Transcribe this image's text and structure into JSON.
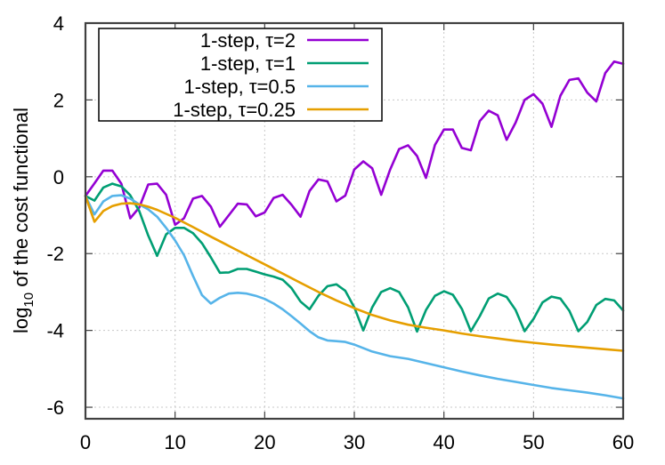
{
  "chart_data": {
    "type": "line",
    "title": "",
    "xlabel": "",
    "ylabel": "log10 of the cost functional",
    "ylabel_parts": {
      "pre": "log",
      "sub": "10",
      "post": " of the cost functional"
    },
    "xlim": [
      0,
      60
    ],
    "ylim": [
      -6.3,
      4
    ],
    "xticks": [
      0,
      10,
      20,
      30,
      40,
      50,
      60
    ],
    "yticks": [
      -6,
      -4,
      -2,
      0,
      2,
      4
    ],
    "xtick_labels": [
      "0",
      "10",
      "20",
      "30",
      "40",
      "50",
      "60"
    ],
    "ytick_labels": [
      "-6",
      "-4",
      "-2",
      "0",
      "2",
      "4"
    ],
    "grid": true,
    "legend_position": "upper left (inset box)",
    "series": [
      {
        "name": "1-step, τ=2",
        "color": "#9400d3",
        "x": [
          0,
          1,
          2,
          3,
          4,
          5,
          6,
          7,
          8,
          9,
          10,
          11,
          12,
          13,
          14,
          15,
          16,
          17,
          18,
          19,
          20,
          21,
          22,
          23,
          24,
          25,
          26,
          27,
          28,
          29,
          30,
          31,
          32,
          33,
          34,
          35,
          36,
          37,
          38,
          39,
          40,
          41,
          42,
          43,
          44,
          45,
          46,
          47,
          48,
          49,
          50,
          51,
          52,
          53,
          54,
          55,
          56,
          57,
          58,
          59,
          60
        ],
        "values": [
          -0.5,
          -0.17,
          0.16,
          0.16,
          -0.18,
          -1.08,
          -0.8,
          -0.2,
          -0.18,
          -0.47,
          -1.25,
          -1.08,
          -0.57,
          -0.5,
          -0.78,
          -1.3,
          -1.0,
          -0.7,
          -0.72,
          -1.03,
          -0.93,
          -0.55,
          -0.47,
          -0.73,
          -1.04,
          -0.37,
          -0.07,
          -0.12,
          -0.64,
          -0.49,
          0.19,
          0.4,
          0.22,
          -0.47,
          0.19,
          0.72,
          0.82,
          0.54,
          -0.03,
          0.83,
          1.23,
          1.23,
          0.75,
          0.69,
          1.45,
          1.72,
          1.6,
          0.96,
          1.41,
          2.0,
          2.15,
          1.9,
          1.3,
          2.11,
          2.52,
          2.56,
          2.19,
          1.96,
          2.7,
          3.0,
          2.94
        ]
      },
      {
        "name": "1-step, τ=1",
        "color": "#009e73",
        "x": [
          0,
          1,
          2,
          3,
          4,
          5,
          6,
          7,
          8,
          9,
          10,
          11,
          12,
          13,
          14,
          15,
          16,
          17,
          18,
          19,
          20,
          21,
          22,
          23,
          24,
          25,
          26,
          27,
          28,
          29,
          30,
          31,
          32,
          33,
          34,
          35,
          36,
          37,
          38,
          39,
          40,
          41,
          42,
          43,
          44,
          45,
          46,
          47,
          48,
          49,
          50,
          51,
          52,
          53,
          54,
          55,
          56,
          57,
          58,
          59,
          60
        ],
        "values": [
          -0.5,
          -0.62,
          -0.28,
          -0.18,
          -0.25,
          -0.48,
          -0.89,
          -1.53,
          -2.06,
          -1.5,
          -1.33,
          -1.33,
          -1.47,
          -1.73,
          -2.1,
          -2.5,
          -2.49,
          -2.4,
          -2.4,
          -2.47,
          -2.54,
          -2.6,
          -2.68,
          -2.9,
          -3.25,
          -3.45,
          -3.1,
          -2.85,
          -2.8,
          -2.97,
          -3.4,
          -4.0,
          -3.4,
          -3.0,
          -2.9,
          -3.0,
          -3.4,
          -4.03,
          -3.47,
          -3.1,
          -2.98,
          -3.07,
          -3.44,
          -4.02,
          -3.63,
          -3.17,
          -3.04,
          -3.13,
          -3.47,
          -4.02,
          -3.7,
          -3.27,
          -3.12,
          -3.17,
          -3.49,
          -4.02,
          -3.78,
          -3.34,
          -3.18,
          -3.22,
          -3.48
        ]
      },
      {
        "name": "1-step, τ=0.5",
        "color": "#56b4e9",
        "x": [
          0,
          1,
          2,
          3,
          4,
          5,
          6,
          7,
          8,
          9,
          10,
          11,
          12,
          13,
          14,
          15,
          16,
          17,
          18,
          19,
          20,
          21,
          22,
          23,
          24,
          25,
          26,
          27,
          28,
          29,
          30,
          32,
          34,
          36,
          38,
          40,
          42,
          44,
          46,
          48,
          50,
          52,
          54,
          56,
          58,
          60
        ],
        "values": [
          -0.5,
          -0.98,
          -0.64,
          -0.5,
          -0.48,
          -0.57,
          -0.72,
          -0.85,
          -1.04,
          -1.33,
          -1.66,
          -2.04,
          -2.58,
          -3.08,
          -3.3,
          -3.15,
          -3.04,
          -3.02,
          -3.04,
          -3.1,
          -3.18,
          -3.3,
          -3.45,
          -3.63,
          -3.82,
          -4.02,
          -4.18,
          -4.26,
          -4.28,
          -4.3,
          -4.37,
          -4.55,
          -4.67,
          -4.74,
          -4.85,
          -4.96,
          -5.07,
          -5.17,
          -5.26,
          -5.34,
          -5.42,
          -5.5,
          -5.56,
          -5.62,
          -5.69,
          -5.77
        ]
      },
      {
        "name": "1-step, τ=0.25",
        "color": "#e69f00",
        "x": [
          0,
          1,
          2,
          3,
          4,
          5,
          6,
          7,
          8,
          10,
          12,
          14,
          16,
          18,
          20,
          22,
          24,
          26,
          28,
          30,
          32,
          34,
          36,
          38,
          40,
          42,
          44,
          46,
          48,
          50,
          52,
          54,
          56,
          58,
          60
        ],
        "values": [
          -0.5,
          -1.17,
          -0.89,
          -0.76,
          -0.7,
          -0.69,
          -0.72,
          -0.78,
          -0.86,
          -1.07,
          -1.31,
          -1.56,
          -1.8,
          -2.04,
          -2.28,
          -2.52,
          -2.76,
          -3.0,
          -3.22,
          -3.42,
          -3.6,
          -3.74,
          -3.85,
          -3.93,
          -4.0,
          -4.08,
          -4.15,
          -4.21,
          -4.27,
          -4.32,
          -4.37,
          -4.41,
          -4.45,
          -4.49,
          -4.53
        ]
      }
    ]
  },
  "legend": {
    "items": [
      {
        "label": "1-step, τ=2",
        "color": "#9400d3"
      },
      {
        "label": "1-step, τ=1",
        "color": "#009e73"
      },
      {
        "label": "1-step, τ=0.5",
        "color": "#56b4e9"
      },
      {
        "label": "1-step, τ=0.25",
        "color": "#e69f00"
      }
    ]
  }
}
